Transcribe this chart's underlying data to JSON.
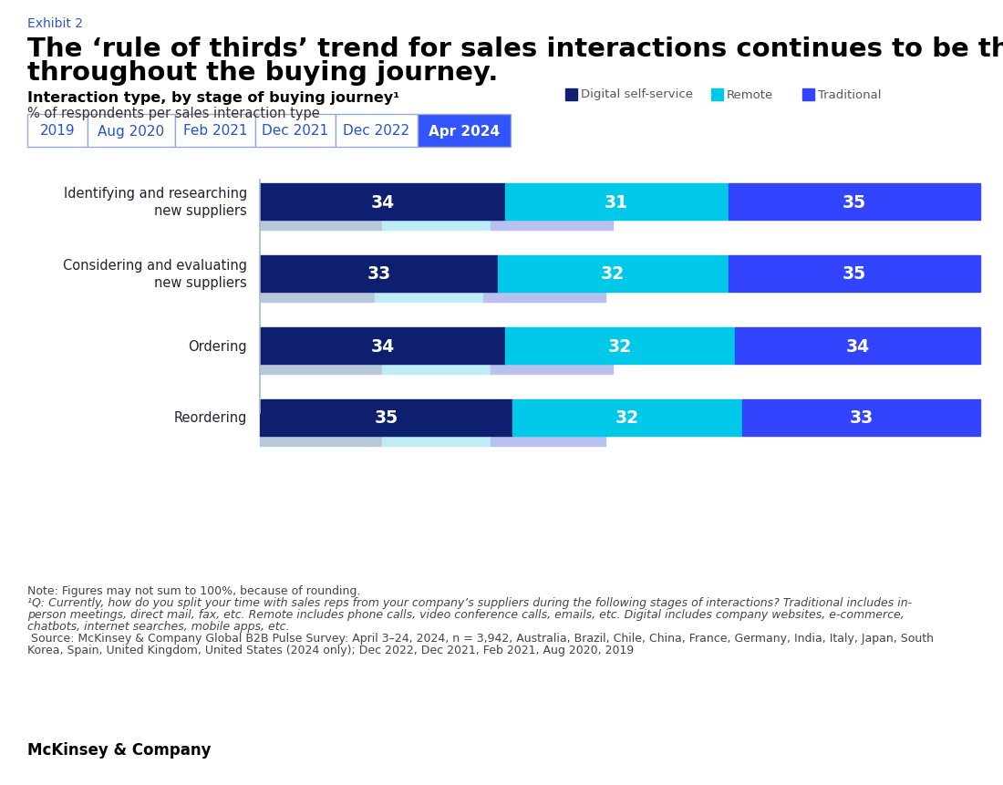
{
  "exhibit_label": "Exhibit 2",
  "title_line1": "The ‘rule of thirds’ trend for sales interactions continues to be the norm",
  "title_line2": "throughout the buying journey.",
  "subtitle1": "Interaction type, by stage of buying journey¹",
  "subtitle2": "% of respondents per sales interaction type",
  "legend_items": [
    {
      "label": "Digital self-service",
      "color": "#0d1f6e"
    },
    {
      "label": "Remote",
      "color": "#00c8e8"
    },
    {
      "label": "Traditional",
      "color": "#3344ff"
    }
  ],
  "tab_labels": [
    "2019",
    "Aug 2020",
    "Feb 2021",
    "Dec 2021",
    "Dec 2022",
    "Apr 2024"
  ],
  "active_tab": "Apr 2024",
  "tab_active_color": "#3355ff",
  "tab_inactive_color": "#ffffff",
  "tab_text_active": "#ffffff",
  "tab_text_inactive": "#2255cc",
  "tab_border_color": "#99aacc",
  "data": [
    {
      "category": "Identifying and researching\nnew suppliers",
      "digital": 34,
      "remote": 31,
      "traditional": 35,
      "digital_bg": 17,
      "remote_bg": 15,
      "traditional_bg": 17
    },
    {
      "category": "Considering and evaluating\nnew suppliers",
      "digital": 33,
      "remote": 32,
      "traditional": 35,
      "digital_bg": 16,
      "remote_bg": 15,
      "traditional_bg": 17
    },
    {
      "category": "Ordering",
      "digital": 34,
      "remote": 32,
      "traditional": 34,
      "digital_bg": 17,
      "remote_bg": 15,
      "traditional_bg": 17
    },
    {
      "category": "Reordering",
      "digital": 35,
      "remote": 32,
      "traditional": 33,
      "digital_bg": 17,
      "remote_bg": 15,
      "traditional_bg": 16
    }
  ],
  "bar_color_digital": "#0d1f6e",
  "bar_color_remote": "#00c8e8",
  "bar_color_traditional": "#3344ff",
  "bar_bg_digital": "#b8c8dc",
  "bar_bg_remote": "#c0ecf8",
  "bar_bg_traditional": "#b8c0f0",
  "note_line1": "Note: Figures may not sum to 100%, because of rounding.",
  "note_line2": "¹Q: Currently, how do you split your time with sales reps from your company’s suppliers during the following stages of interactions? Traditional includes in-",
  "note_line3": "person meetings, direct mail, fax, etc. Remote includes phone calls, video conference calls, emails, etc. Digital includes company websites, e-commerce,",
  "note_line4": "chatbots, internet searches, mobile apps, etc.",
  "note_line5": " Source: McKinsey & Company Global B2B Pulse Survey: April 3–24, 2024, n = 3,942, Australia, Brazil, Chile, China, France, Germany, India, Italy, Japan, South",
  "note_line6": "Korea, Spain, United Kingdom, United States (2024 only); Dec 2022, Dec 2021, Feb 2021, Aug 2020, 2019",
  "footer": "McKinsey & Company",
  "background_color": "#ffffff",
  "exhibit_color": "#3355cc",
  "title_color": "#000000",
  "subtitle1_color": "#000000",
  "subtitle2_color": "#333333",
  "note_color": "#444444",
  "footer_color": "#000000"
}
